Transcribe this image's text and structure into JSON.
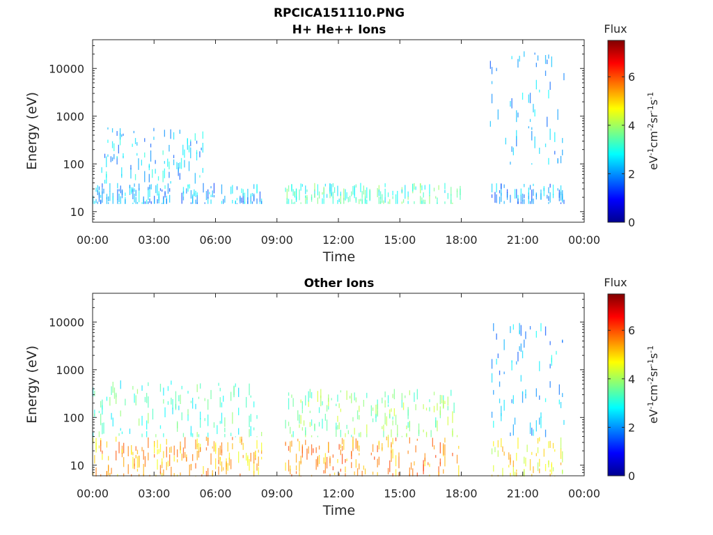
{
  "figure_title": "RPCICA151110.PNG",
  "chart_data": [
    {
      "type": "heatmap",
      "title": "H+ He++ Ions",
      "xlabel": "Time",
      "ylabel": "Energy (eV)",
      "x_ticks": [
        "00:00",
        "03:00",
        "06:00",
        "09:00",
        "12:00",
        "15:00",
        "18:00",
        "21:00",
        "00:00"
      ],
      "xlim_hours": [
        0,
        24
      ],
      "y_ticks": [
        "10",
        "100",
        "1000",
        "10000"
      ],
      "y_scale": "log",
      "ylim": [
        6,
        40000
      ],
      "colorbar": {
        "title": "Flux",
        "label": "eV-1cm-2sr-1s-1",
        "ticks": [
          "0",
          "2",
          "4",
          "6"
        ],
        "range": [
          0,
          7.5
        ]
      },
      "regions": [
        {
          "t": [
            0,
            8.3
          ],
          "emin": 15,
          "emax": 40,
          "fmin": 1.3,
          "fmax": 3.0
        },
        {
          "t": [
            0.2,
            5.5
          ],
          "emin": 40,
          "emax": 600,
          "fmin": 1.5,
          "fmax": 3.2
        },
        {
          "t": [
            9.4,
            18.0
          ],
          "emin": 15,
          "emax": 40,
          "fmin": 2.5,
          "fmax": 4.0
        },
        {
          "t": [
            19.4,
            23.0
          ],
          "emin": 15,
          "emax": 40,
          "fmin": 1.2,
          "fmax": 2.8
        },
        {
          "t": [
            19.4,
            23.0
          ],
          "emin": 100,
          "emax": 30000,
          "fmin": 1.5,
          "fmax": 2.8
        }
      ]
    },
    {
      "type": "heatmap",
      "title": "Other Ions",
      "xlabel": "Time",
      "ylabel": "Energy (eV)",
      "x_ticks": [
        "00:00",
        "03:00",
        "06:00",
        "09:00",
        "12:00",
        "15:00",
        "18:00",
        "21:00",
        "00:00"
      ],
      "xlim_hours": [
        0,
        24
      ],
      "y_ticks": [
        "10",
        "100",
        "1000",
        "10000"
      ],
      "y_scale": "log",
      "ylim": [
        6,
        40000
      ],
      "colorbar": {
        "title": "Flux",
        "label": "eV-1cm-2sr-1s-1",
        "ticks": [
          "0",
          "2",
          "4",
          "6"
        ],
        "range": [
          0,
          7.5
        ]
      },
      "regions": [
        {
          "t": [
            0,
            8.3
          ],
          "emin": 6,
          "emax": 40,
          "fmin": 4.5,
          "fmax": 6.0
        },
        {
          "t": [
            0,
            8.3
          ],
          "emin": 40,
          "emax": 600,
          "fmin": 2.5,
          "fmax": 4.0
        },
        {
          "t": [
            9.4,
            18.0
          ],
          "emin": 6,
          "emax": 40,
          "fmin": 4.8,
          "fmax": 6.2
        },
        {
          "t": [
            9.4,
            18.0
          ],
          "emin": 40,
          "emax": 400,
          "fmin": 3.0,
          "fmax": 4.5
        },
        {
          "t": [
            19.4,
            23.0
          ],
          "emin": 6,
          "emax": 40,
          "fmin": 4.0,
          "fmax": 5.5
        },
        {
          "t": [
            19.4,
            23.0
          ],
          "emin": 40,
          "emax": 10000,
          "fmin": 1.5,
          "fmax": 3.0
        }
      ]
    }
  ]
}
